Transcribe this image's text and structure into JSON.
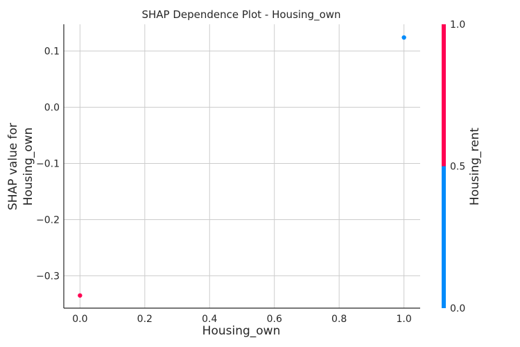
{
  "chart_data": {
    "type": "scatter",
    "title": "SHAP Dependence Plot - Housing_own",
    "xlabel": "Housing_own",
    "ylabel_lines": [
      "SHAP value for",
      "Housing_own"
    ],
    "xlim": [
      -0.05,
      1.05
    ],
    "ylim": [
      -0.3575,
      0.1475
    ],
    "xticks": [
      0.0,
      0.2,
      0.4,
      0.6,
      0.8,
      1.0
    ],
    "xtick_labels": [
      "0.0",
      "0.2",
      "0.4",
      "0.6",
      "0.8",
      "1.0"
    ],
    "yticks": [
      0.1,
      0.0,
      -0.1,
      -0.2,
      -0.3
    ],
    "ytick_labels": [
      "0.1",
      "0.0",
      "−0.1",
      "−0.2",
      "−0.3"
    ],
    "grid": true,
    "series": [
      {
        "x": 0.0,
        "y": -0.335,
        "color_value": 1.0,
        "color": "#ff0052"
      },
      {
        "x": 1.0,
        "y": 0.124,
        "color_value": 0.0,
        "color": "#008bfb"
      }
    ],
    "colorbar": {
      "label": "Housing_rent",
      "range": [
        0.0,
        1.0
      ],
      "ticks": [
        1.0,
        0.5,
        0.0
      ],
      "tick_labels": [
        "1.0",
        "0.5",
        "0.0"
      ],
      "low_color": "#008bfb",
      "high_color": "#ff0052"
    }
  }
}
